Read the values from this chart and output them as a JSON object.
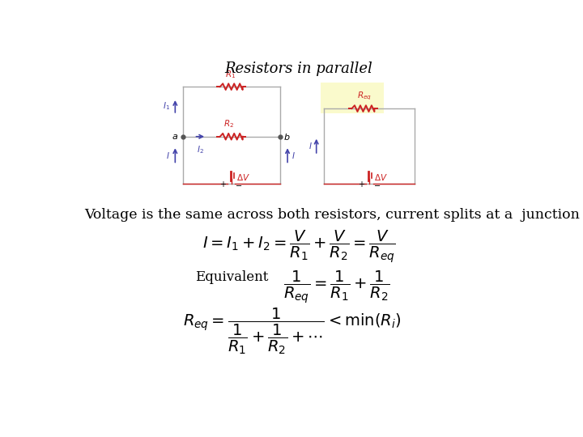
{
  "title": "Resistors in parallel",
  "title_fontsize": 13,
  "bg_color": "#ffffff",
  "circuit_line_color": "#aaaaaa",
  "resistor_color": "#cc2222",
  "arrow_color": "#4444aa",
  "voltage_source_color": "#cc2222",
  "label_color_blue": "#4444aa",
  "label_color_red": "#cc2222",
  "yellow_bg": "#fafacc",
  "text_line1": "Voltage is the same across both resistors, current splits at a  junction :"
}
